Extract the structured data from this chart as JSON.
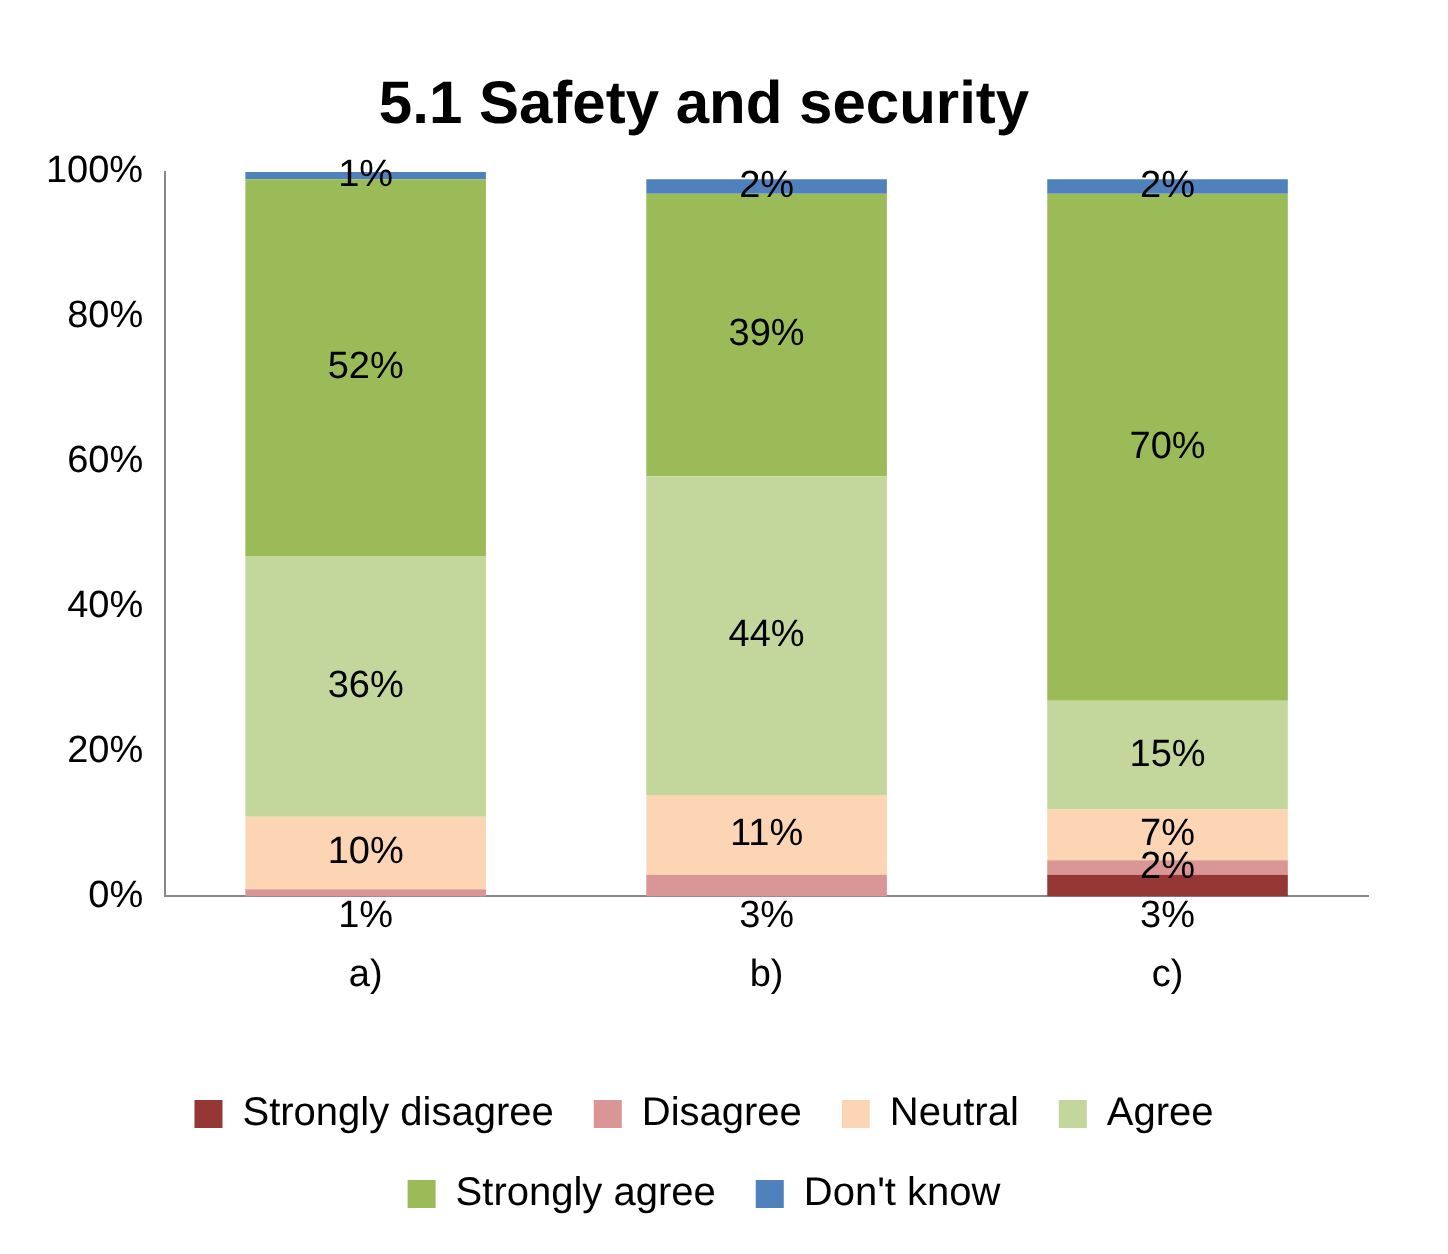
{
  "chart_data": {
    "type": "bar",
    "title": "5.1 Safety and security",
    "stacked": true,
    "categories": [
      "a)",
      "b)",
      "c)"
    ],
    "series": [
      {
        "name": "Strongly disagree",
        "color": "#953735",
        "values": [
          null,
          null,
          3
        ]
      },
      {
        "name": "Disagree",
        "color": "#d99694",
        "values": [
          1,
          3,
          2
        ]
      },
      {
        "name": "Neutral",
        "color": "#fcd5b5",
        "values": [
          10,
          11,
          7
        ]
      },
      {
        "name": "Agree",
        "color": "#c3d69b",
        "values": [
          36,
          44,
          15
        ]
      },
      {
        "name": "Strongly agree",
        "color": "#9bbb59",
        "values": [
          52,
          39,
          70
        ]
      },
      {
        "name": "Don't know",
        "color": "#4f81bd",
        "values": [
          1,
          2,
          2
        ]
      }
    ],
    "value_labels": [
      [
        null,
        null,
        "3%"
      ],
      [
        "1%",
        "3%",
        "2%"
      ],
      [
        "10%",
        "11%",
        "7%"
      ],
      [
        "36%",
        "44%",
        "15%"
      ],
      [
        "52%",
        "39%",
        "70%"
      ],
      [
        "1%",
        "2%",
        "2%"
      ]
    ],
    "ylim": [
      0,
      100
    ],
    "yticks": [
      {
        "value": 0,
        "label": "0%"
      },
      {
        "value": 20,
        "label": "20%"
      },
      {
        "value": 40,
        "label": "40%"
      },
      {
        "value": 60,
        "label": "60%"
      },
      {
        "value": 80,
        "label": "80%"
      },
      {
        "value": 100,
        "label": "100%"
      }
    ],
    "grid": false,
    "legend": "bottom"
  }
}
